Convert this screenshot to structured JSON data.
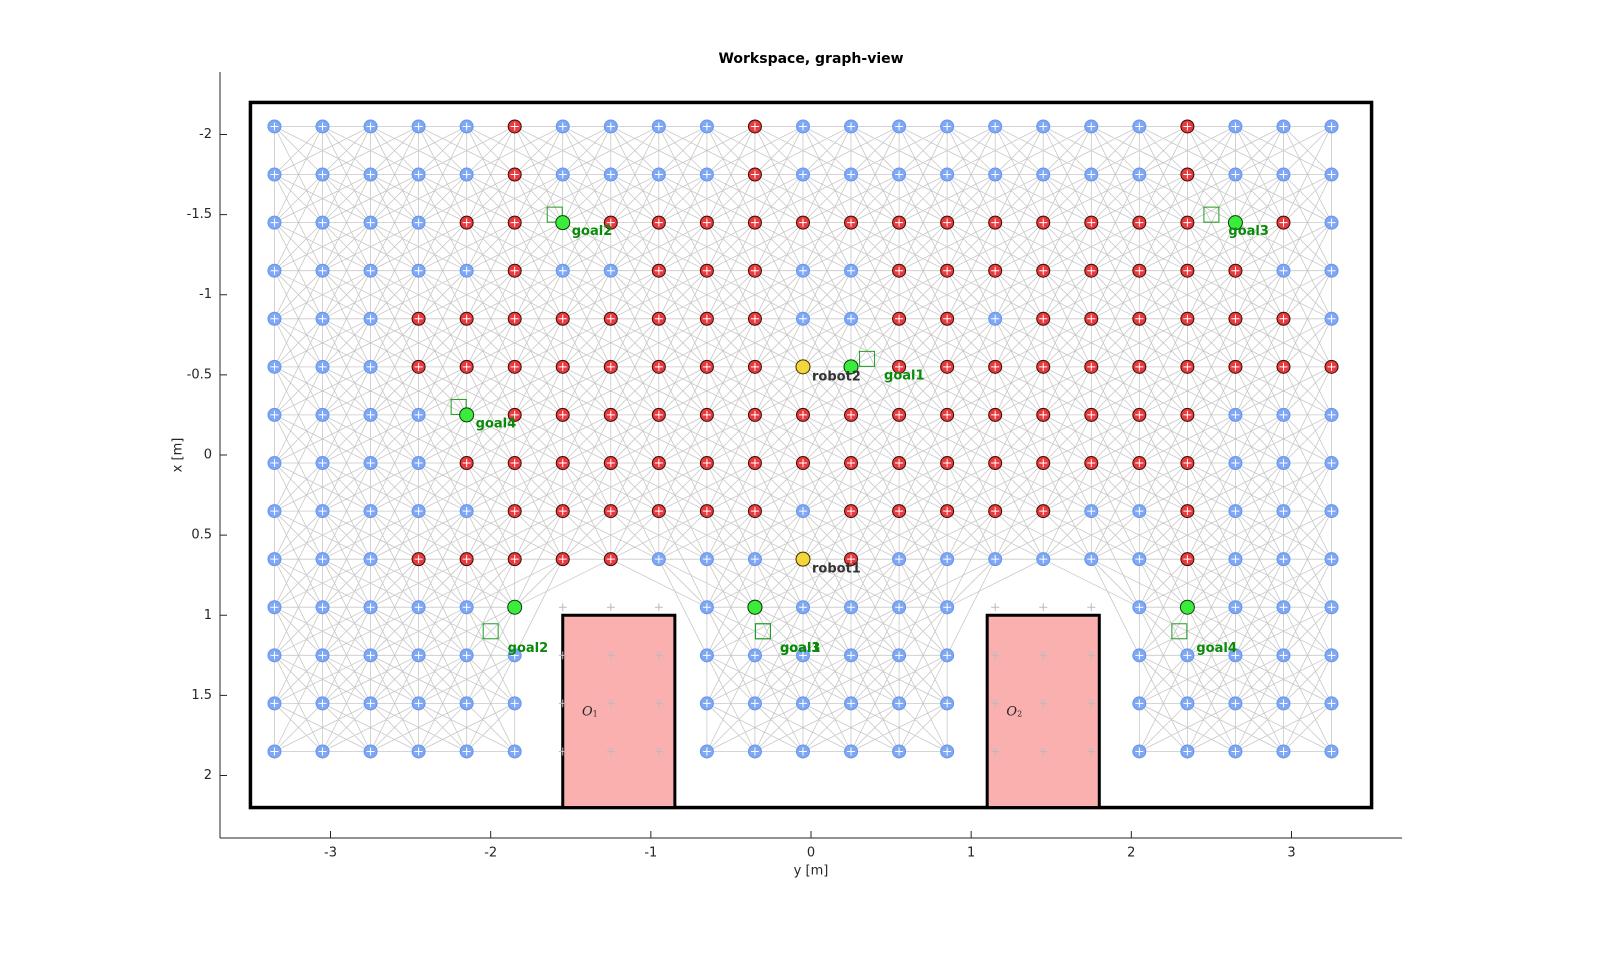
{
  "chart_data": {
    "type": "graph",
    "title": "Workspace, graph-view",
    "xlabel": "y [m]",
    "ylabel": "x [m]",
    "xlim": [
      -3.69,
      3.69
    ],
    "ylim": [
      -2.39,
      2.39
    ],
    "y_reversed": true,
    "xticks": [
      -3,
      -2,
      -1,
      0,
      1,
      2,
      3
    ],
    "yticks": [
      -2,
      -1.5,
      -1,
      -0.5,
      0,
      0.5,
      1,
      1.5,
      2
    ],
    "workspace": {
      "y": [
        -3.5,
        3.5
      ],
      "x": [
        -2.2,
        2.2
      ]
    },
    "obstacles": [
      {
        "label": "O",
        "subscript": "1",
        "y": [
          -1.55,
          -0.85
        ],
        "x": [
          1.0,
          2.2
        ],
        "color": "#fbb0b0"
      },
      {
        "label": "O",
        "subscript": "2",
        "y": [
          1.1,
          1.8
        ],
        "x": [
          1.0,
          2.2
        ],
        "color": "#fbb0b0"
      }
    ],
    "node_y": [
      -3.35,
      -3.05,
      -2.75,
      -2.45,
      -2.15,
      -1.85,
      -1.55,
      -1.25,
      -0.95,
      -0.65,
      -0.35,
      -0.05,
      0.25,
      0.55,
      0.85,
      1.15,
      1.45,
      1.75,
      2.05,
      2.35,
      2.65,
      2.95,
      3.25
    ],
    "node_x": [
      -2.05,
      -1.75,
      -1.45,
      -1.15,
      -0.85,
      -0.55,
      -0.25,
      0.05,
      0.35,
      0.65,
      0.95,
      1.25,
      1.55,
      1.85
    ],
    "node_colors": {
      "b": "#7ea8f5",
      "r": "#e8393d",
      "o": "#bbbbbb"
    },
    "node_state": [
      "bbbbbrbbbbrbbbbbbbbrbbb",
      "bbbbbrbbbbrbbbbbbbbrbbb",
      "bbbbrrrrrrrrrrrrrrrrrrb",
      "bbbbbrbbrrrbbrrrrrrrrbb",
      "bbbrrrrrrrrbbrrbrrrrrrb",
      "bbbrrrrrrrrrrrrrrrrrrrr",
      "bbbbbrrrrrrrrrrrrrrrbbb",
      "bbbbrrrrrrrrrrrrrrrrbbb",
      "bbbbbrrrrrrbrrrrrbbrbbb",
      "bbbrrrrrbbbrrbbbbbbrbbb",
      "bbbbbbooobbbbbbooobbbbb",
      "bbbbbbooobbbbbbooobbbbb",
      "bbbbbbooobbbbbbooobbbbb",
      "bbbbbbooobbbbbbooobbbbb"
    ],
    "robots": [
      {
        "name": "robot1",
        "y": -0.05,
        "x": 0.65,
        "color": "#f5d63a"
      },
      {
        "name": "robot2",
        "y": -0.05,
        "x": -0.55,
        "color": "#f5d63a"
      }
    ],
    "goals": [
      {
        "name": "goal1",
        "y": 0.25,
        "x": -0.55,
        "target_y": 0.35,
        "target_x": -0.6
      },
      {
        "name": "goal2",
        "y": -1.55,
        "x": -1.45,
        "target_y": -1.6,
        "target_x": -1.5
      },
      {
        "name": "goal3",
        "y": 2.65,
        "x": -1.45,
        "target_y": 2.5,
        "target_x": -1.5
      },
      {
        "name": "goal4",
        "y": -2.15,
        "x": -0.25,
        "target_y": -2.2,
        "target_x": -0.3
      },
      {
        "name": "goal1",
        "y": -0.35,
        "x": 0.95,
        "target_y": -0.3,
        "target_x": 1.1
      },
      {
        "name": "goal2",
        "y": -1.85,
        "x": 0.95,
        "target_y": -2.0,
        "target_x": 1.1
      },
      {
        "name": "goal3",
        "y": -0.35,
        "x": 0.95,
        "target_y": -0.3,
        "target_x": 1.1
      },
      {
        "name": "goal4",
        "y": 2.35,
        "x": 0.95,
        "target_y": 2.3,
        "target_x": 1.1
      }
    ],
    "goal_color": "#3cec3c",
    "goal_label_color": "#0a8a0a"
  }
}
